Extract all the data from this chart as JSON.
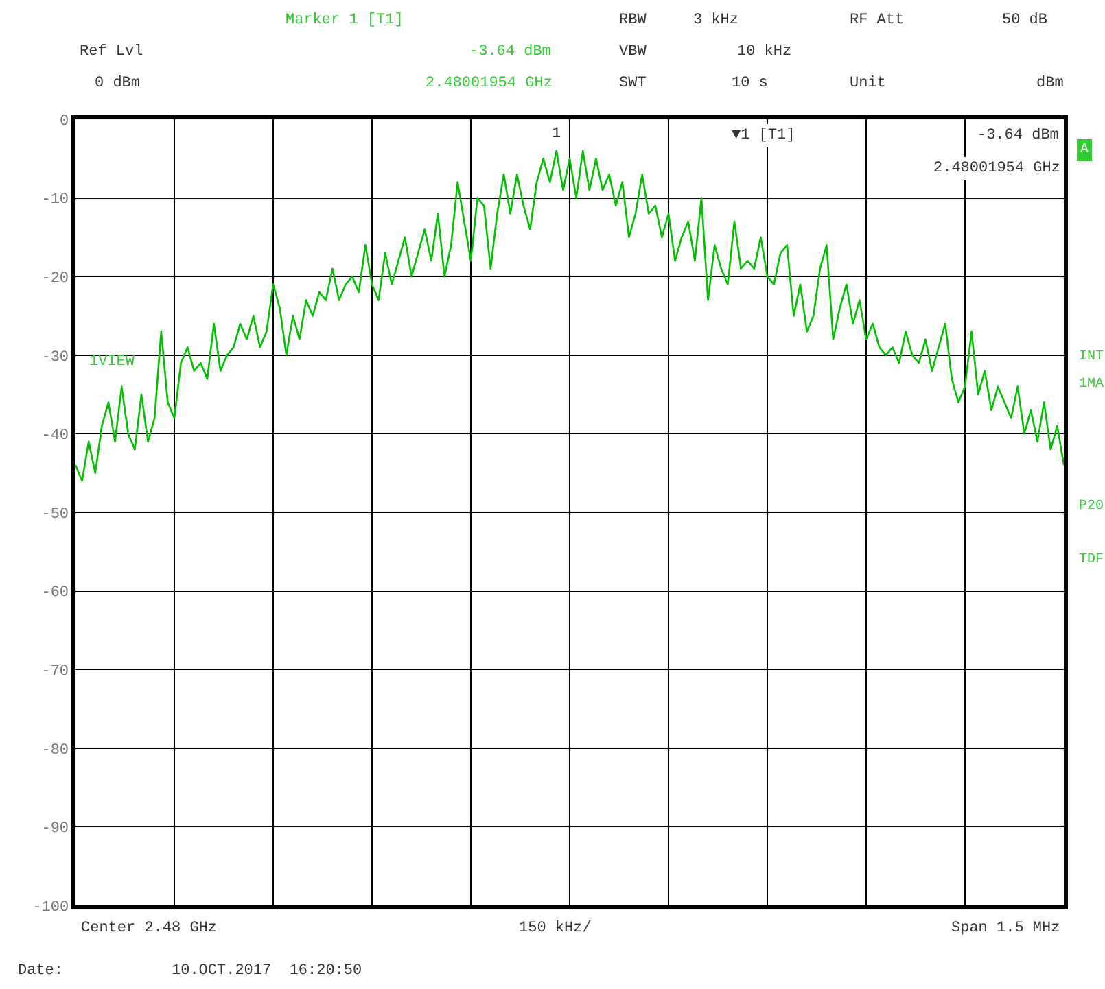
{
  "chart_data": {
    "type": "line",
    "categories": [
      null,
      null,
      null,
      null,
      null,
      null,
      null,
      null,
      null,
      null,
      null,
      null,
      null,
      null,
      null,
      null,
      null,
      null,
      null,
      null,
      null,
      null,
      null,
      null,
      null,
      null,
      null,
      null,
      null,
      null,
      null,
      null,
      null,
      null,
      null,
      null,
      null,
      null,
      null,
      null,
      null,
      null,
      null,
      null,
      null,
      null,
      null,
      null,
      null,
      null,
      null,
      null,
      null,
      null,
      null,
      null,
      null,
      null,
      null,
      null,
      null,
      null,
      null,
      null,
      null,
      null,
      null,
      null,
      null,
      null,
      null,
      null,
      null,
      null,
      null,
      null,
      null,
      null,
      null,
      null,
      null,
      null,
      null,
      null,
      null,
      null,
      null,
      null,
      null,
      null,
      null,
      null,
      null,
      null,
      null,
      null,
      null,
      null,
      null,
      null,
      null,
      null,
      null,
      null,
      null,
      null,
      null,
      null,
      null,
      null,
      null,
      null,
      null,
      null,
      null,
      null,
      null,
      null,
      null,
      null,
      null,
      null,
      null,
      null,
      null,
      null,
      null,
      null,
      null,
      null,
      null,
      null,
      null,
      null,
      null,
      null,
      null,
      null,
      null,
      null,
      null,
      null,
      null,
      null,
      null,
      null,
      null,
      null,
      null,
      null,
      null
    ],
    "series": [
      {
        "color": "#00c000",
        "values": [
          -44,
          -46,
          -41,
          -45,
          -39,
          -36,
          -41,
          -34,
          -40,
          -42,
          -35,
          -41,
          -38,
          -27,
          -36,
          -38,
          -31,
          -29,
          -32,
          -31,
          -33,
          -26,
          -32,
          -30,
          -29,
          -26,
          -28,
          -25,
          -29,
          -27,
          -21,
          -24,
          -30,
          -25,
          -28,
          -23,
          -25,
          -22,
          -23,
          -19,
          -23,
          -21,
          -20,
          -22,
          -16,
          -21,
          -23,
          -17,
          -21,
          -18,
          -15,
          -20,
          -17,
          -14,
          -18,
          -12,
          -20,
          -16,
          -8,
          -13,
          -18,
          -10,
          -11,
          -19,
          -12,
          -7,
          -12,
          -7,
          -11,
          -14,
          -8,
          -5,
          -8,
          -4,
          -9,
          -5,
          -10,
          -4,
          -9,
          -5,
          -9,
          -7,
          -11,
          -8,
          -15,
          -12,
          -7,
          -12,
          -11,
          -15,
          -12,
          -18,
          -15,
          -13,
          -18,
          -10,
          -23,
          -16,
          -19,
          -21,
          -13,
          -19,
          -18,
          -19,
          -15,
          -20,
          -21,
          -17,
          -16,
          -25,
          -21,
          -27,
          -25,
          -19,
          -16,
          -28,
          -24,
          -21,
          -26,
          -23,
          -28,
          -26,
          -29,
          -30,
          -29,
          -31,
          -27,
          -30,
          -31,
          -28,
          -32,
          -29,
          -26,
          -33,
          -36,
          -34,
          -27,
          -35,
          -32,
          -37,
          -34,
          -36,
          -38,
          -34,
          -40,
          -37,
          -41,
          -36,
          -42,
          -39,
          -44
        ]
      }
    ],
    "ylim": [
      -100,
      0
    ],
    "yticks": [
      0,
      -10,
      -20,
      -30,
      -40,
      -50,
      -60,
      -70,
      -80,
      -90,
      -100
    ],
    "grid": true,
    "line_style": "solid",
    "annotations": [
      "Marker 1 [T1]",
      "Ref Lvl",
      "-3.64 dBm",
      "0 dBm",
      "2.48001954 GHz",
      "RBW",
      "3 kHz",
      "RF Att",
      "50 dB",
      "VBW",
      "10 kHz",
      "SWT",
      "10 s",
      "Unit",
      "dBm",
      "▼1 [T1]",
      "-3.64 dBm",
      "2.48001954 GHz",
      "1VIEW",
      "A",
      "INT",
      "1MA",
      "P20",
      "TDF",
      "Center 2.48 GHz",
      "150 kHz/",
      "Span 1.5 MHz",
      "Date:",
      "10.OCT.2017  16:20:50",
      {
        "text": "1",
        "y": -4
      }
    ]
  }
}
